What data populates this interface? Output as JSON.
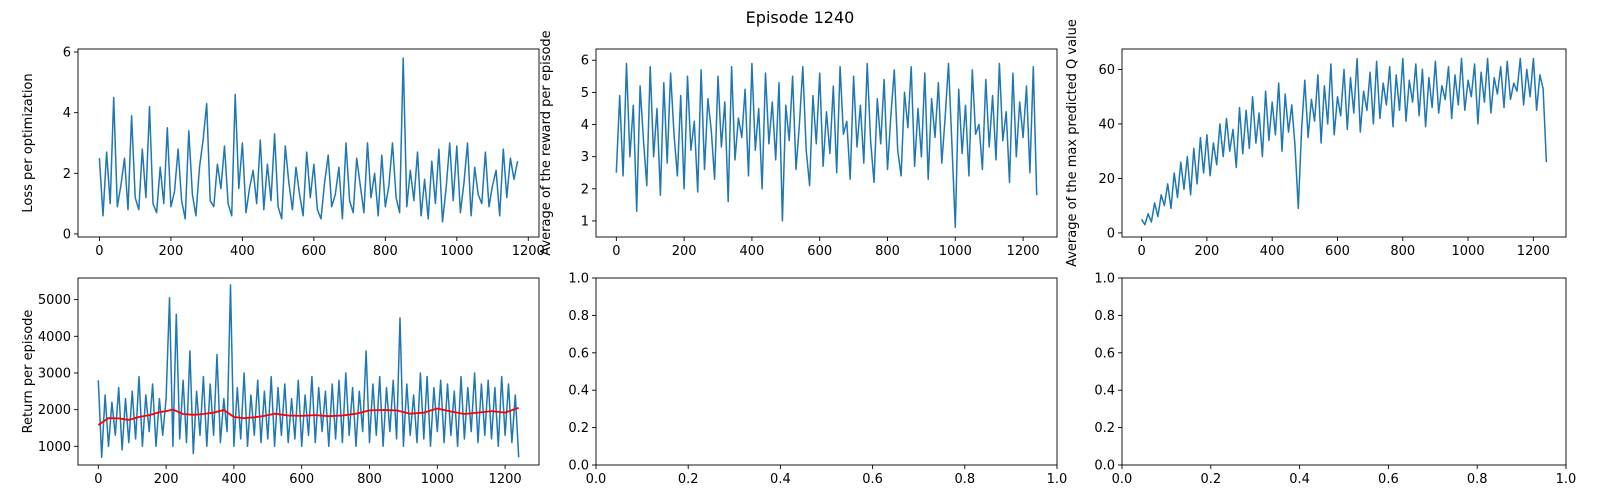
{
  "figure": {
    "suptitle": "Episode 1240"
  },
  "colors": {
    "series_blue": "#1f77b4",
    "moving_avg_red": "#ff0000",
    "axes": "#000000",
    "background": "#ffffff"
  },
  "chart_data": [
    {
      "id": "loss",
      "type": "line",
      "ylabel": "Loss per optimization",
      "xlim": [
        -60,
        1230
      ],
      "ylim": [
        -0.1,
        6.1
      ],
      "xticks": [
        0,
        200,
        400,
        600,
        800,
        1000,
        1200
      ],
      "yticks": [
        0,
        2,
        4,
        6
      ],
      "series": [
        {
          "color": "#1f77b4",
          "sampled_every": 10,
          "x_start": 0,
          "values": [
            2.5,
            0.6,
            2.7,
            1.0,
            4.5,
            0.9,
            1.6,
            2.5,
            0.8,
            3.9,
            1.2,
            0.8,
            2.8,
            1.2,
            4.2,
            1.0,
            0.7,
            2.2,
            1.0,
            3.5,
            0.9,
            1.4,
            2.8,
            1.1,
            0.5,
            3.4,
            1.3,
            0.6,
            2.2,
            3.1,
            4.3,
            1.1,
            0.9,
            2.3,
            1.5,
            2.9,
            1.0,
            0.6,
            4.6,
            1.5,
            3.0,
            0.7,
            1.5,
            2.1,
            1.0,
            3.1,
            0.8,
            2.3,
            1.1,
            3.3,
            0.9,
            0.5,
            2.9,
            1.7,
            0.8,
            2.2,
            1.3,
            0.6,
            2.7,
            1.2,
            2.3,
            0.8,
            0.5,
            1.7,
            2.6,
            0.9,
            1.3,
            2.2,
            0.5,
            3.0,
            1.1,
            0.7,
            2.5,
            1.6,
            0.7,
            3.0,
            1.2,
            2.0,
            0.6,
            2.6,
            0.9,
            1.6,
            3.0,
            1.2,
            0.7,
            5.8,
            0.9,
            2.1,
            1.1,
            2.7,
            0.6,
            1.8,
            0.5,
            2.4,
            1.0,
            2.8,
            0.4,
            1.5,
            3.0,
            1.1,
            2.9,
            0.7,
            1.7,
            3.0,
            0.6,
            2.2,
            1.3,
            1.0,
            2.7,
            0.9,
            1.6,
            2.1,
            0.6,
            2.8,
            1.2,
            2.5,
            1.8,
            2.4
          ]
        }
      ]
    },
    {
      "id": "avg-reward",
      "type": "line",
      "ylabel": "Average of the reward per episode",
      "xlim": [
        -60,
        1300
      ],
      "ylim": [
        0.5,
        6.35
      ],
      "xticks": [
        0,
        200,
        400,
        600,
        800,
        1000,
        1200
      ],
      "yticks": [
        1,
        2,
        3,
        4,
        5,
        6
      ],
      "series": [
        {
          "color": "#1f77b4",
          "sampled_every": 10,
          "x_start": 0,
          "values": [
            2.5,
            4.9,
            2.4,
            5.9,
            3.0,
            4.6,
            1.3,
            5.2,
            3.5,
            2.1,
            5.8,
            3.0,
            4.5,
            1.8,
            5.3,
            2.8,
            5.6,
            3.7,
            2.4,
            4.9,
            2.0,
            5.5,
            3.2,
            4.1,
            1.9,
            5.7,
            2.6,
            4.8,
            3.8,
            2.3,
            5.5,
            3.3,
            4.7,
            1.6,
            5.8,
            2.9,
            4.2,
            3.6,
            5.1,
            2.4,
            5.9,
            3.2,
            4.5,
            2.0,
            5.6,
            3.4,
            4.7,
            2.9,
            5.3,
            1.0,
            4.6,
            3.5,
            5.5,
            2.6,
            4.0,
            5.8,
            3.2,
            2.1,
            4.9,
            3.4,
            5.6,
            2.7,
            4.4,
            3.1,
            5.2,
            2.5,
            5.8,
            3.7,
            4.1,
            2.3,
            5.5,
            3.3,
            4.6,
            2.8,
            5.9,
            3.5,
            2.2,
            4.8,
            3.4,
            5.4,
            2.6,
            4.3,
            5.7,
            3.2,
            2.4,
            5.0,
            3.9,
            5.8,
            2.7,
            4.5,
            3.0,
            5.6,
            2.3,
            4.8,
            3.6,
            5.3,
            2.8,
            4.2,
            5.9,
            3.4,
            0.8,
            5.1,
            3.1,
            4.6,
            2.4,
            5.7,
            3.7,
            4.0,
            2.6,
            5.4,
            3.3,
            4.9,
            2.9,
            5.9,
            3.5,
            4.4,
            2.2,
            5.6,
            3.0,
            4.7,
            3.6,
            5.2,
            2.5,
            5.8,
            1.8
          ]
        }
      ]
    },
    {
      "id": "max-q",
      "type": "line",
      "ylabel": "Average of the max predicted Q value",
      "xlim": [
        -60,
        1300
      ],
      "ylim": [
        -1.5,
        67.5
      ],
      "xticks": [
        0,
        200,
        400,
        600,
        800,
        1000,
        1200
      ],
      "yticks": [
        0,
        20,
        40,
        60
      ],
      "series": [
        {
          "color": "#1f77b4",
          "sampled_every": 10,
          "x_start": 0,
          "values": [
            5,
            3,
            7,
            4,
            11,
            6,
            14,
            10,
            18,
            9,
            22,
            13,
            26,
            16,
            28,
            14,
            31,
            18,
            35,
            22,
            36,
            21,
            33,
            25,
            40,
            28,
            42,
            30,
            38,
            24,
            46,
            29,
            45,
            31,
            50,
            33,
            44,
            28,
            52,
            34,
            48,
            36,
            55,
            30,
            51,
            37,
            47,
            32,
            9,
            38,
            56,
            35,
            49,
            41,
            58,
            33,
            54,
            40,
            62,
            36,
            50,
            43,
            60,
            38,
            57,
            44,
            64,
            37,
            52,
            45,
            59,
            40,
            63,
            42,
            55,
            47,
            61,
            39,
            58,
            45,
            64,
            41,
            56,
            48,
            62,
            43,
            60,
            39,
            57,
            46,
            63,
            44,
            54,
            49,
            61,
            42,
            58,
            47,
            64,
            45,
            56,
            50,
            62,
            40,
            59,
            48,
            64,
            44,
            57,
            51,
            61,
            46,
            63,
            49,
            55,
            52,
            64,
            47,
            60,
            50,
            64,
            45,
            58,
            53,
            26
          ]
        }
      ]
    },
    {
      "id": "return",
      "type": "line",
      "ylabel": "Return per episode",
      "xlim": [
        -60,
        1300
      ],
      "ylim": [
        490,
        5590
      ],
      "xticks": [
        0,
        200,
        400,
        600,
        800,
        1000,
        1200
      ],
      "yticks": [
        1000,
        2000,
        3000,
        4000,
        5000
      ],
      "series": [
        {
          "color": "#1f77b4",
          "sampled_every": 10,
          "x_start": 0,
          "values": [
            2800,
            700,
            2400,
            1000,
            2200,
            1300,
            2600,
            900,
            2300,
            1100,
            2500,
            1200,
            2900,
            1000,
            2400,
            1400,
            2700,
            1000,
            2300,
            1300,
            2300,
            5050,
            1000,
            4600,
            1200,
            2800,
            1100,
            3600,
            800,
            2500,
            1300,
            2900,
            1000,
            2700,
            1300,
            3500,
            1100,
            2300,
            1400,
            5400,
            1000,
            2600,
            1200,
            3000,
            1000,
            2400,
            1300,
            2800,
            1100,
            2500,
            1200,
            2900,
            1000,
            2600,
            1300,
            2700,
            1100,
            2300,
            1200,
            2800,
            1000,
            2400,
            1300,
            2900,
            1100,
            2600,
            1400,
            2500,
            1000,
            2700,
            1200,
            2800,
            1100,
            3000,
            1300,
            2600,
            1000,
            2500,
            1400,
            3600,
            1100,
            2700,
            1300,
            2900,
            1000,
            2600,
            1400,
            2800,
            1200,
            4500,
            1000,
            2700,
            1300,
            2400,
            1100,
            3000,
            1200,
            2900,
            1000,
            2600,
            1400,
            2800,
            1100,
            2700,
            1300,
            2500,
            1000,
            2900,
            1200,
            2600,
            1400,
            3000,
            1100,
            2700,
            1300,
            2800,
            1200,
            2600,
            1000,
            2900,
            1300,
            2700,
            1100,
            2400,
            700
          ]
        },
        {
          "color": "#ff0000",
          "x": [
            0,
            30,
            60,
            90,
            120,
            150,
            180,
            200,
            220,
            250,
            280,
            310,
            340,
            370,
            400,
            430,
            460,
            490,
            520,
            560,
            600,
            640,
            680,
            720,
            760,
            800,
            840,
            880,
            920,
            960,
            1000,
            1040,
            1080,
            1120,
            1160,
            1200,
            1240
          ],
          "values": [
            1580,
            1770,
            1760,
            1720,
            1800,
            1850,
            1930,
            1960,
            2000,
            1880,
            1860,
            1880,
            1920,
            1990,
            1800,
            1770,
            1790,
            1830,
            1890,
            1840,
            1830,
            1850,
            1820,
            1840,
            1890,
            1980,
            1990,
            1980,
            1890,
            1920,
            2030,
            1950,
            1880,
            1920,
            1960,
            1920,
            2050
          ]
        }
      ]
    },
    {
      "id": "empty-1",
      "type": "line",
      "xlim": [
        0,
        1
      ],
      "ylim": [
        0,
        1
      ],
      "xticks": [
        0.0,
        0.2,
        0.4,
        0.6,
        0.8,
        1.0
      ],
      "yticks": [
        0.0,
        0.2,
        0.4,
        0.6,
        0.8,
        1.0
      ],
      "series": []
    },
    {
      "id": "empty-2",
      "type": "line",
      "xlim": [
        0,
        1
      ],
      "ylim": [
        0,
        1
      ],
      "xticks": [
        0.0,
        0.2,
        0.4,
        0.6,
        0.8,
        1.0
      ],
      "yticks": [
        0.0,
        0.2,
        0.4,
        0.6,
        0.8,
        1.0
      ],
      "series": []
    }
  ]
}
